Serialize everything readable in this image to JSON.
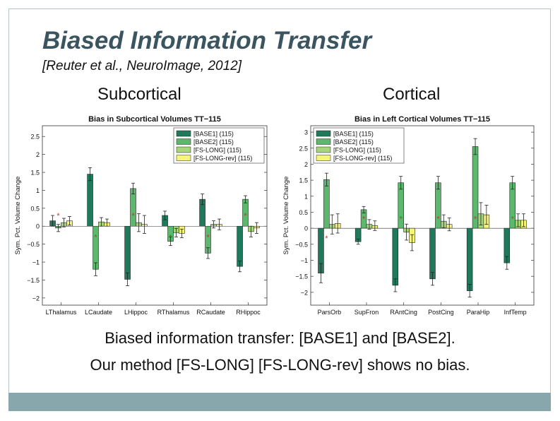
{
  "slide": {
    "title": "Biased Information Transfer",
    "citation": "[Reuter et al., NeuroImage, 2012]",
    "label_left": "Subcortical",
    "label_right": "Cortical",
    "caption_line1": "Biased information transfer: [BASE1] and [BASE2].",
    "caption_line2": "Our method [FS-LONG] [FS-LONG-rev] shows no bias."
  },
  "colors": {
    "title": "#3b5560",
    "footer": "#88a7ad",
    "series": [
      "#1f7a5c",
      "#5cb86d",
      "#a6d67a",
      "#f5f57a"
    ],
    "marker": "#c0392b"
  },
  "chart_data": [
    {
      "type": "bar",
      "title": "Bias in Subcortical Volumes TT−115",
      "ylabel": "Sym. Pct. Volume Change",
      "xlabel": "",
      "ylim": [
        -2.2,
        2.8
      ],
      "yticks": [
        -2,
        -1.5,
        -1,
        -0.5,
        0,
        0.5,
        1,
        1.5,
        2,
        2.5
      ],
      "ytick_labels": [
        "−2",
        "−1.5",
        "−1",
        "−0.5",
        "0",
        "0.5",
        "1",
        "1.5",
        "2",
        "2.5"
      ],
      "categories": [
        "LThalamus",
        "LCaudate",
        "LHippoc",
        "RThalamus",
        "RCaudate",
        "RHippoc"
      ],
      "legend_position": "top-right",
      "series": [
        {
          "name": "[BASE1] (115)",
          "values": [
            0.15,
            1.45,
            -1.48,
            0.3,
            0.75,
            -1.12
          ],
          "errors": [
            0.15,
            0.18,
            0.18,
            0.12,
            0.15,
            0.15
          ]
        },
        {
          "name": "[BASE2] (115)",
          "values": [
            -0.05,
            -1.2,
            1.05,
            -0.42,
            -0.75,
            0.75
          ],
          "errors": [
            0.1,
            0.18,
            0.15,
            0.12,
            0.15,
            0.1
          ]
        },
        {
          "name": "[FS-LONG] (115)",
          "values": [
            0.1,
            0.12,
            0.1,
            -0.18,
            0.05,
            -0.15
          ],
          "errors": [
            0.12,
            0.12,
            0.25,
            0.12,
            0.1,
            0.15
          ]
        },
        {
          "name": "[FS-LONG-rev] (115)",
          "values": [
            0.15,
            0.1,
            0.05,
            -0.2,
            0.05,
            -0.05
          ],
          "errors": [
            0.12,
            0.1,
            0.25,
            0.12,
            0.15,
            0.15
          ]
        }
      ],
      "markers": [
        0.3,
        -0.3,
        0.3,
        -0.3,
        -0.3,
        0.3
      ]
    },
    {
      "type": "bar",
      "title": "Bias in Left Cortical Volumes TT−115",
      "ylabel": "Sym. Pct. Volume Change",
      "xlabel": "",
      "ylim": [
        -2.4,
        3.2
      ],
      "yticks": [
        -2,
        -1.5,
        -1,
        -0.5,
        0,
        0.5,
        1,
        1.5,
        2,
        2.5,
        3
      ],
      "ytick_labels": [
        "−2",
        "−1.5",
        "−1",
        "−0.5",
        "0",
        "0.5",
        "1",
        "1.5",
        "2",
        "2.5",
        "3"
      ],
      "categories": [
        "ParsOrb",
        "SupFron",
        "RAntCing",
        "PostCing",
        "ParaHip",
        "InfTemp"
      ],
      "legend_position": "top-left",
      "series": [
        {
          "name": "[BASE1] (115)",
          "values": [
            -1.4,
            -0.42,
            -1.78,
            -1.58,
            -1.95,
            -1.08
          ],
          "errors": [
            0.3,
            0.08,
            0.2,
            0.2,
            0.2,
            0.2
          ]
        },
        {
          "name": "[BASE2] (115)",
          "values": [
            1.52,
            0.58,
            1.42,
            1.42,
            2.55,
            1.42
          ],
          "errors": [
            0.2,
            0.1,
            0.2,
            0.2,
            0.25,
            0.2
          ]
        },
        {
          "name": "[FS-LONG] (115)",
          "values": [
            0.12,
            0.12,
            -0.12,
            0.22,
            0.45,
            0.25
          ],
          "errors": [
            0.3,
            0.15,
            0.25,
            0.2,
            0.35,
            0.2
          ]
        },
        {
          "name": "[FS-LONG-rev] (115)",
          "values": [
            0.15,
            0.08,
            -0.45,
            0.12,
            0.42,
            0.25
          ],
          "errors": [
            0.3,
            0.15,
            0.25,
            0.2,
            0.3,
            0.2
          ]
        }
      ],
      "markers": [
        -0.3,
        0.3,
        0.3,
        0.3,
        0.3,
        0.3
      ]
    }
  ]
}
